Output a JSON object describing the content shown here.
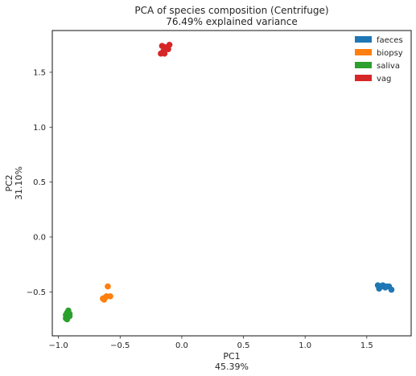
{
  "chart_data": {
    "type": "scatter",
    "title": "PCA of species composition (Centrifuge)",
    "subtitle": "76.49% explained variance",
    "xlabel": "PC1",
    "xlabel_sub": "45.39%",
    "ylabel": "PC2",
    "ylabel_sub": "31.10%",
    "xlim": [
      -1.05,
      1.86
    ],
    "ylim": [
      -0.9,
      1.88
    ],
    "x_ticks": [
      -1.0,
      -0.5,
      0.0,
      0.5,
      1.0,
      1.5
    ],
    "x_tick_labels": [
      "−1.0",
      "−0.5",
      "0.0",
      "0.5",
      "1.0",
      "1.5"
    ],
    "y_ticks": [
      -0.5,
      0.0,
      0.5,
      1.0,
      1.5
    ],
    "y_tick_labels": [
      "−0.5",
      "0.0",
      "0.5",
      "1.0",
      "1.5"
    ],
    "grid": false,
    "legend_position": "top-right",
    "series": [
      {
        "name": "faeces",
        "color": "#1f77b4",
        "points": [
          [
            1.59,
            -0.44
          ],
          [
            1.6,
            -0.47
          ],
          [
            1.62,
            -0.45
          ],
          [
            1.63,
            -0.44
          ],
          [
            1.65,
            -0.46
          ],
          [
            1.66,
            -0.45
          ],
          [
            1.68,
            -0.45
          ],
          [
            1.7,
            -0.48
          ]
        ]
      },
      {
        "name": "biopsy",
        "color": "#ff7f0e",
        "points": [
          [
            -0.6,
            -0.45
          ],
          [
            -0.62,
            -0.55
          ],
          [
            -0.64,
            -0.56
          ],
          [
            -0.61,
            -0.54
          ],
          [
            -0.58,
            -0.54
          ],
          [
            -0.63,
            -0.57
          ]
        ]
      },
      {
        "name": "saliva",
        "color": "#2ca02c",
        "points": [
          [
            -0.92,
            -0.67
          ],
          [
            -0.93,
            -0.69
          ],
          [
            -0.91,
            -0.7
          ],
          [
            -0.94,
            -0.71
          ],
          [
            -0.92,
            -0.72
          ],
          [
            -0.93,
            -0.73
          ],
          [
            -0.94,
            -0.74
          ],
          [
            -0.93,
            -0.75
          ],
          [
            -0.92,
            -0.71
          ],
          [
            -0.91,
            -0.72
          ]
        ]
      },
      {
        "name": "vag",
        "color": "#d62728",
        "points": [
          [
            -0.16,
            1.74
          ],
          [
            -0.14,
            1.73
          ],
          [
            -0.12,
            1.72
          ],
          [
            -0.1,
            1.75
          ],
          [
            -0.13,
            1.71
          ],
          [
            -0.15,
            1.69
          ],
          [
            -0.17,
            1.67
          ],
          [
            -0.14,
            1.67
          ],
          [
            -0.11,
            1.71
          ]
        ]
      }
    ]
  }
}
